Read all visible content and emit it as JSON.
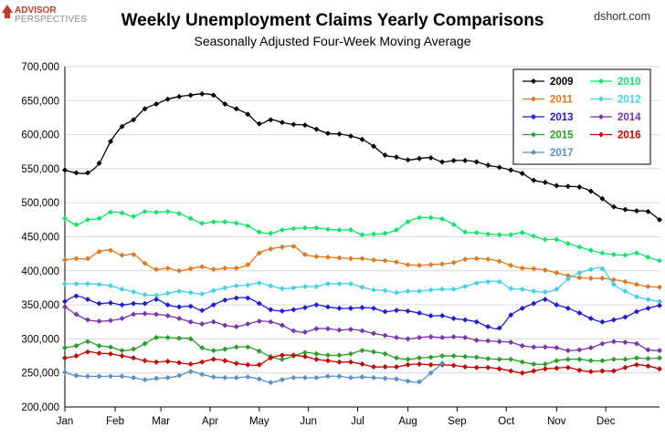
{
  "logo": {
    "line1": "ADVISOR",
    "line2": "PERSPECTIVES"
  },
  "source": "dshort.com",
  "colors": {
    "background": "#ffffff",
    "grid": "#d8d8d8",
    "axis": "#000000"
  },
  "chart_data": {
    "type": "line",
    "title": "Weekly Unemployment Claims Yearly Comparisons",
    "subtitle": "Seasonally Adjusted Four-Week Moving Average",
    "xlabel": "",
    "ylabel": "",
    "x_week_range": [
      1,
      53
    ],
    "ylim": [
      200000,
      700000
    ],
    "y_ticks": [
      200000,
      250000,
      300000,
      350000,
      400000,
      450000,
      500000,
      550000,
      600000,
      650000,
      700000
    ],
    "y_tick_labels": [
      "200,000",
      "250,000",
      "300,000",
      "350,000",
      "400,000",
      "450,000",
      "500,000",
      "550,000",
      "600,000",
      "650,000",
      "700,000"
    ],
    "x_tick_labels": [
      "Jan",
      "Feb",
      "Mar",
      "Apr",
      "May",
      "Jun",
      "Jul",
      "Aug",
      "Sep",
      "Oct",
      "Nov",
      "Dec"
    ],
    "x_tick_weeks": [
      1,
      5.4,
      9.4,
      13.7,
      18,
      22.3,
      26.6,
      31,
      35.3,
      39.6,
      44,
      48.3
    ],
    "grid": true,
    "legend_position": "top-right",
    "series": [
      {
        "name": "2009",
        "color": "#000000",
        "marker": "diamond",
        "values": [
          548000,
          544000,
          544000,
          558000,
          590000,
          612000,
          622000,
          638000,
          645000,
          652000,
          656000,
          658000,
          660000,
          658000,
          645000,
          638000,
          630000,
          616000,
          622000,
          618000,
          615000,
          614000,
          608000,
          602000,
          601000,
          598000,
          593000,
          583000,
          570000,
          567000,
          563000,
          565000,
          566000,
          560000,
          562000,
          562000,
          560000,
          555000,
          552000,
          548000,
          543000,
          533000,
          530000,
          525000,
          524000,
          523000,
          517000,
          506000,
          494000,
          490000,
          488000,
          487000,
          475000
        ]
      },
      {
        "name": "2010",
        "color": "#11e36b",
        "marker": "diamond",
        "values": [
          477000,
          468000,
          475000,
          477000,
          486000,
          485000,
          480000,
          487000,
          486000,
          487000,
          484000,
          477000,
          470000,
          472000,
          472000,
          470000,
          466000,
          457000,
          455000,
          460000,
          462000,
          463000,
          463000,
          461000,
          460000,
          460000,
          453000,
          454000,
          455000,
          460000,
          472000,
          478000,
          478000,
          476000,
          468000,
          457000,
          456000,
          454000,
          453000,
          453000,
          456000,
          451000,
          446000,
          446000,
          440000,
          435000,
          430000,
          426000,
          424000,
          423000,
          426000,
          420000,
          415000
        ]
      },
      {
        "name": "2011",
        "color": "#e07820",
        "marker": "diamond",
        "values": [
          416000,
          418000,
          418000,
          428000,
          430000,
          423000,
          424000,
          411000,
          402000,
          404000,
          400000,
          403000,
          406000,
          402000,
          404000,
          404000,
          409000,
          426000,
          432000,
          435000,
          436000,
          424000,
          421000,
          420000,
          419000,
          418000,
          418000,
          416000,
          415000,
          413000,
          409000,
          408000,
          409000,
          410000,
          412000,
          417000,
          418000,
          417000,
          414000,
          408000,
          404000,
          403000,
          401000,
          397000,
          393000,
          390000,
          389000,
          389000,
          387000,
          384000,
          380000,
          377000,
          376000
        ]
      },
      {
        "name": "2012",
        "color": "#44d0e8",
        "marker": "diamond",
        "values": [
          381000,
          381000,
          381000,
          380000,
          378000,
          373000,
          369000,
          365000,
          364000,
          367000,
          370000,
          368000,
          366000,
          371000,
          375000,
          378000,
          379000,
          382000,
          378000,
          374000,
          375000,
          377000,
          377000,
          381000,
          381000,
          381000,
          376000,
          372000,
          371000,
          368000,
          370000,
          370000,
          372000,
          373000,
          373000,
          377000,
          382000,
          384000,
          384000,
          374000,
          373000,
          370000,
          369000,
          373000,
          388000,
          397000,
          402000,
          403000,
          380000,
          370000,
          362000,
          358000,
          355000
        ]
      },
      {
        "name": "2013",
        "color": "#1c1cd6",
        "marker": "diamond",
        "values": [
          355000,
          363000,
          358000,
          352000,
          353000,
          350000,
          352000,
          352000,
          358000,
          350000,
          347000,
          348000,
          342000,
          350000,
          357000,
          360000,
          360000,
          352000,
          343000,
          341000,
          343000,
          346000,
          350000,
          347000,
          345000,
          345000,
          346000,
          345000,
          340000,
          342000,
          341000,
          338000,
          334000,
          334000,
          330000,
          328000,
          325000,
          318000,
          316000,
          335000,
          345000,
          352000,
          358000,
          350000,
          345000,
          338000,
          330000,
          325000,
          328000,
          332000,
          340000,
          345000,
          349000
        ]
      },
      {
        "name": "2014",
        "color": "#7a33a8",
        "marker": "diamond",
        "values": [
          347000,
          336000,
          328000,
          326000,
          327000,
          330000,
          336000,
          337000,
          336000,
          334000,
          330000,
          325000,
          322000,
          325000,
          320000,
          318000,
          322000,
          326000,
          325000,
          320000,
          312000,
          310000,
          315000,
          315000,
          313000,
          314000,
          312000,
          308000,
          305000,
          302000,
          300000,
          302000,
          303000,
          302000,
          303000,
          302000,
          298000,
          297000,
          296000,
          295000,
          290000,
          288000,
          288000,
          287000,
          283000,
          284000,
          287000,
          293000,
          296000,
          295000,
          293000,
          284000,
          283000
        ]
      },
      {
        "name": "2015",
        "color": "#28a028",
        "marker": "diamond",
        "values": [
          287000,
          290000,
          296000,
          290000,
          288000,
          283000,
          285000,
          293000,
          302000,
          302000,
          301000,
          300000,
          287000,
          283000,
          285000,
          288000,
          288000,
          282000,
          274000,
          270000,
          275000,
          280000,
          278000,
          276000,
          276000,
          278000,
          283000,
          281000,
          278000,
          272000,
          270000,
          272000,
          273000,
          275000,
          275000,
          274000,
          273000,
          271000,
          270000,
          270000,
          266000,
          263000,
          263000,
          268000,
          270000,
          270000,
          268000,
          268000,
          270000,
          270000,
          272000,
          271000,
          272000
        ]
      },
      {
        "name": "2016",
        "color": "#c40000",
        "marker": "diamond",
        "values": [
          272000,
          275000,
          281000,
          279000,
          278000,
          275000,
          272000,
          268000,
          266000,
          267000,
          265000,
          263000,
          266000,
          270000,
          268000,
          264000,
          262000,
          262000,
          272000,
          276000,
          276000,
          274000,
          270000,
          268000,
          266000,
          266000,
          263000,
          259000,
          259000,
          259000,
          262000,
          263000,
          262000,
          262000,
          261000,
          259000,
          258000,
          258000,
          256000,
          253000,
          250000,
          253000,
          256000,
          257000,
          258000,
          254000,
          252000,
          253000,
          253000,
          258000,
          262000,
          260000,
          256000
        ]
      },
      {
        "name": "2017",
        "color": "#5b8fc7",
        "marker": "diamond",
        "values": [
          251000,
          246000,
          245000,
          245000,
          245000,
          245000,
          243000,
          240000,
          242000,
          243000,
          246000,
          252000,
          248000,
          244000,
          243000,
          243000,
          244000,
          241000,
          236000,
          240000,
          243000,
          243000,
          243000,
          245000,
          245000,
          243000,
          244000,
          243000,
          242000,
          241000,
          238000,
          237000,
          250000,
          264000
        ]
      }
    ]
  }
}
